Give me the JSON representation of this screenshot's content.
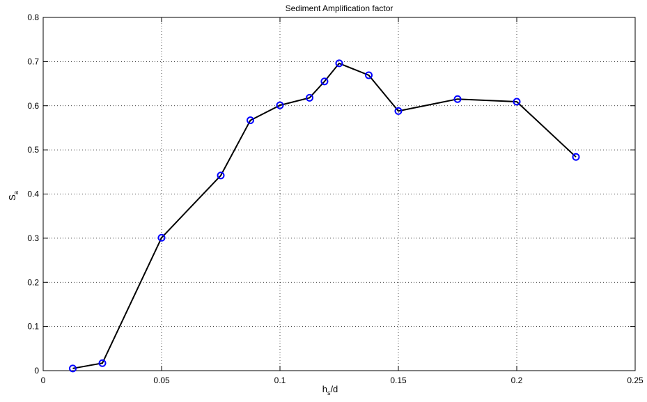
{
  "chart_data": {
    "type": "line",
    "title": "Sediment Amplification factor",
    "xlabel": {
      "main": "h",
      "sub": "s",
      "rest": "/d"
    },
    "ylabel": {
      "main": "S",
      "sub": "a"
    },
    "xlim": [
      0,
      0.25
    ],
    "ylim": [
      0,
      0.8
    ],
    "xticks": [
      0,
      0.05,
      0.1,
      0.15,
      0.2,
      0.25
    ],
    "yticks": [
      0,
      0.1,
      0.2,
      0.3,
      0.4,
      0.5,
      0.6,
      0.7,
      0.8
    ],
    "xtick_labels": [
      "0",
      "0.05",
      "0.1",
      "0.15",
      "0.2",
      "0.25"
    ],
    "ytick_labels": [
      "0",
      "0.1",
      "0.2",
      "0.3",
      "0.4",
      "0.5",
      "0.6",
      "0.7",
      "0.8"
    ],
    "grid": true,
    "series": [
      {
        "x": [
          0.0125,
          0.025,
          0.05,
          0.075,
          0.0875,
          0.1,
          0.1125,
          0.1188,
          0.125,
          0.1375,
          0.15,
          0.175,
          0.2,
          0.225
        ],
        "y": [
          0.005,
          0.017,
          0.301,
          0.442,
          0.567,
          0.601,
          0.618,
          0.655,
          0.696,
          0.669,
          0.588,
          0.615,
          0.609,
          0.484
        ],
        "line_color": "#000000",
        "marker": "circle",
        "marker_color": "#0000ff"
      }
    ]
  }
}
